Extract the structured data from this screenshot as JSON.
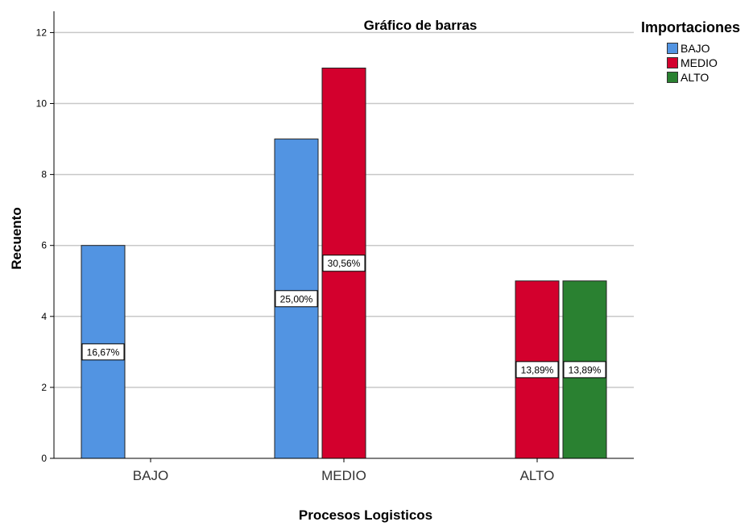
{
  "chart_data": {
    "type": "bar",
    "title": "Gráfico de barras",
    "xlabel": "Procesos Logisticos",
    "ylabel": "Recuento",
    "categories": [
      "BAJO",
      "MEDIO",
      "ALTO"
    ],
    "ylim": [
      0,
      12.6
    ],
    "yticks": [
      0,
      2,
      4,
      6,
      8,
      10,
      12
    ],
    "grid": true,
    "legend_title": "Importaciones",
    "legend_position": "top-right",
    "series": [
      {
        "name": "BAJO",
        "color": "#5294E2",
        "values": [
          6,
          9,
          null
        ],
        "labels": [
          "16,67%",
          "25,00%",
          ""
        ]
      },
      {
        "name": "MEDIO",
        "color": "#D3002D",
        "values": [
          null,
          11,
          5
        ],
        "labels": [
          "",
          "30,56%",
          "13,89%"
        ]
      },
      {
        "name": "ALTO",
        "color": "#2A8131",
        "values": [
          null,
          null,
          5
        ],
        "labels": [
          "",
          "",
          "13,89%"
        ]
      }
    ]
  }
}
